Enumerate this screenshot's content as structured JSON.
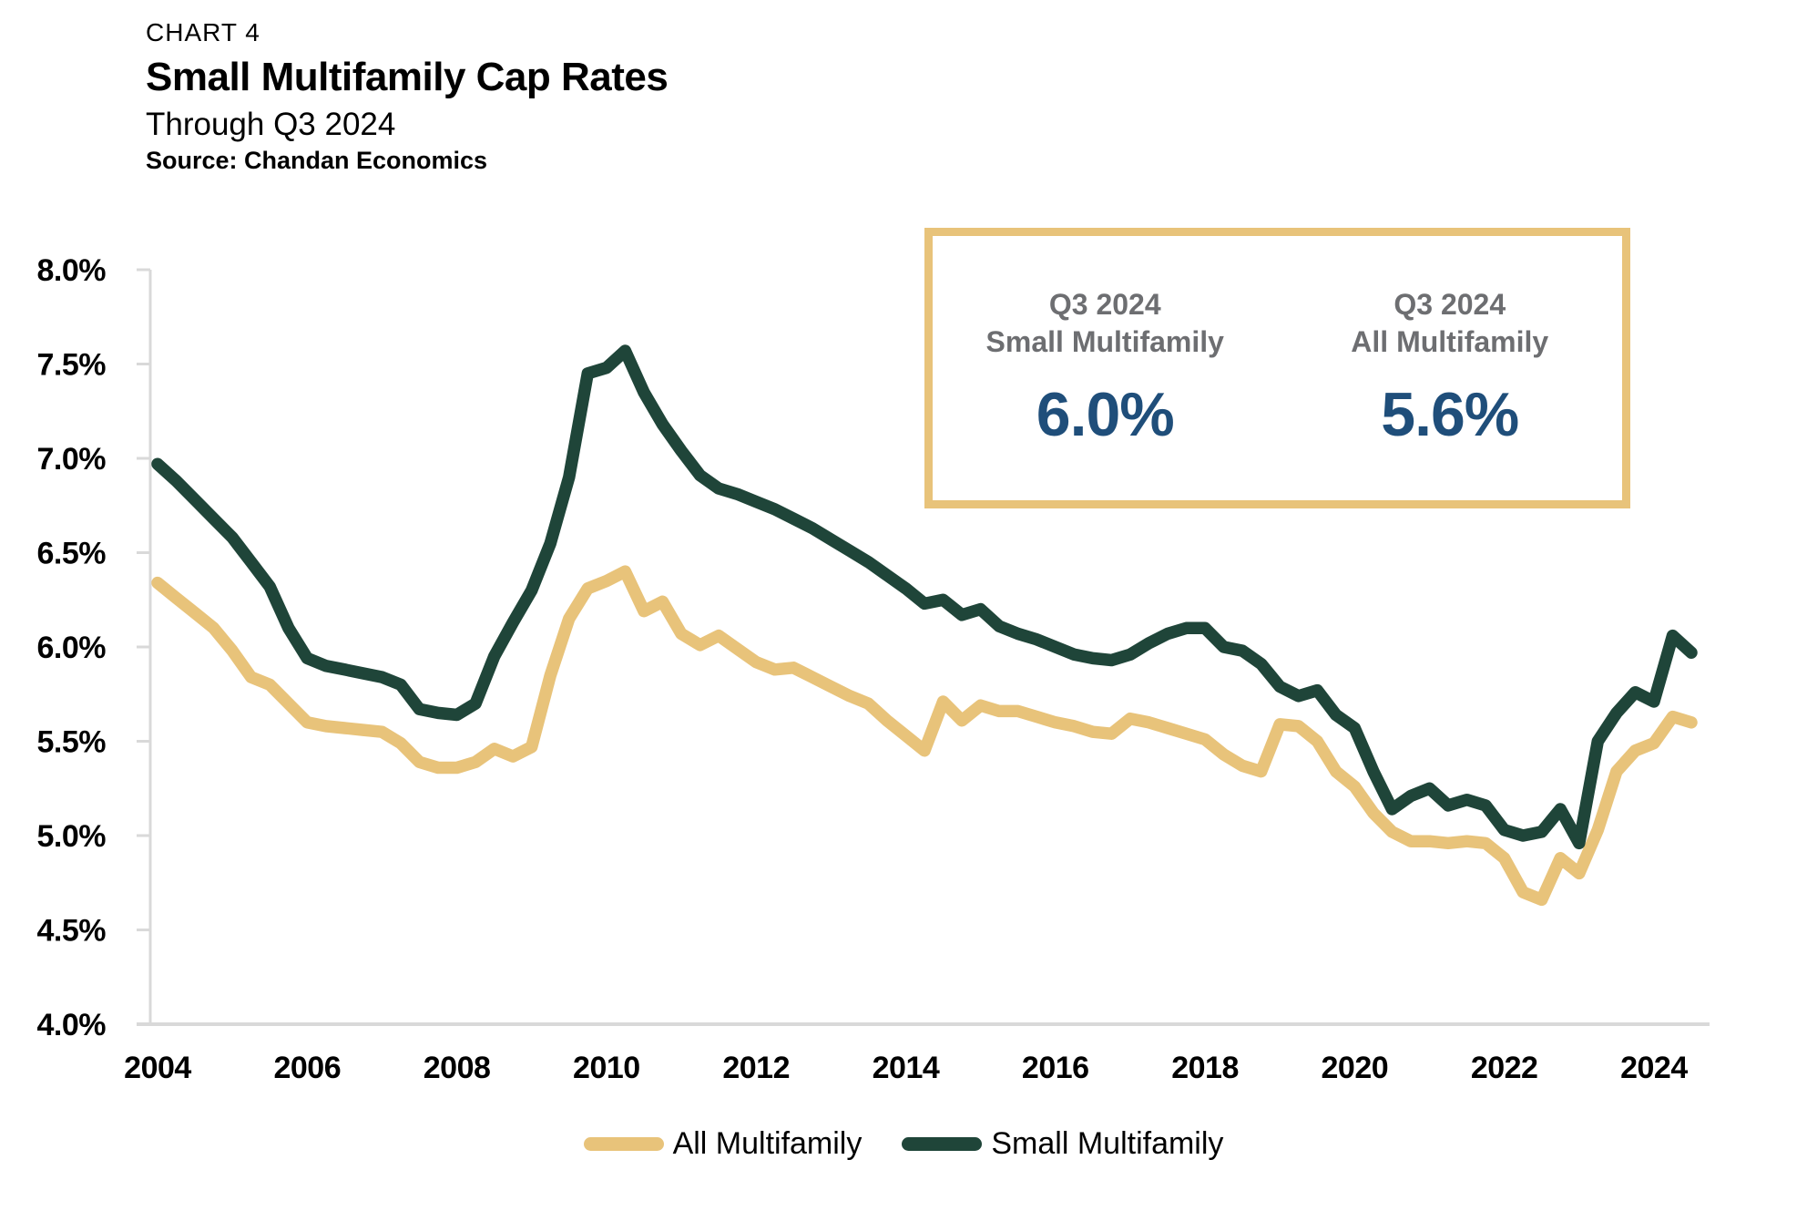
{
  "header": {
    "chart_label": "CHART 4",
    "title": "Small Multifamily Cap Rates",
    "subtitle": "Through Q3 2024",
    "source": "Source: Chandan Economics"
  },
  "callout": {
    "border_color": "#E8C37A",
    "label_color": "#6D6E71",
    "value_color": "#1F4E7A",
    "items": [
      {
        "period": "Q3 2024",
        "label": "Small Multifamily",
        "value": "6.0%"
      },
      {
        "period": "Q3 2024",
        "label": "All Multifamily",
        "value": "5.6%"
      }
    ]
  },
  "chart_data": {
    "type": "line",
    "title": "Small Multifamily Cap Rates",
    "subtitle": "Through Q3 2024",
    "source": "Chandan Economics",
    "frequency": "quarterly",
    "x_start": "2004 Q1",
    "x_end": "2024 Q3",
    "x_tick_years": [
      2004,
      2006,
      2008,
      2010,
      2012,
      2014,
      2016,
      2018,
      2020,
      2022,
      2024
    ],
    "ylim": [
      4.0,
      8.0
    ],
    "y_tick_step": 0.5,
    "y_tick_suffix": "%",
    "grid": false,
    "legend_position": "bottom-center",
    "axis_color": "#D9D9D9",
    "series": [
      {
        "name": "All Multifamily",
        "color": "#E8C37A",
        "values": [
          6.34,
          6.26,
          6.18,
          6.1,
          5.98,
          5.84,
          5.8,
          5.7,
          5.6,
          5.58,
          5.57,
          5.56,
          5.55,
          5.49,
          5.39,
          5.36,
          5.36,
          5.39,
          5.46,
          5.42,
          5.47,
          5.85,
          6.15,
          6.31,
          6.35,
          6.4,
          6.19,
          6.24,
          6.07,
          6.01,
          6.06,
          5.99,
          5.92,
          5.88,
          5.89,
          5.84,
          5.79,
          5.74,
          5.7,
          5.61,
          5.53,
          5.45,
          5.71,
          5.61,
          5.69,
          5.66,
          5.66,
          5.63,
          5.6,
          5.58,
          5.55,
          5.54,
          5.62,
          5.6,
          5.57,
          5.54,
          5.51,
          5.43,
          5.37,
          5.34,
          5.59,
          5.58,
          5.5,
          5.34,
          5.26,
          5.12,
          5.02,
          4.97,
          4.97,
          4.96,
          4.97,
          4.96,
          4.88,
          4.7,
          4.66,
          4.88,
          4.8,
          5.03,
          5.34,
          5.45,
          5.49,
          5.63,
          5.6
        ]
      },
      {
        "name": "Small Multifamily",
        "color": "#1F4539",
        "values": [
          6.97,
          6.88,
          6.78,
          6.68,
          6.58,
          6.45,
          6.32,
          6.1,
          5.94,
          5.9,
          5.88,
          5.86,
          5.84,
          5.8,
          5.67,
          5.65,
          5.64,
          5.7,
          5.95,
          6.13,
          6.3,
          6.55,
          6.9,
          7.45,
          7.48,
          7.57,
          7.35,
          7.18,
          7.04,
          6.91,
          6.84,
          6.81,
          6.77,
          6.73,
          6.68,
          6.63,
          6.57,
          6.51,
          6.45,
          6.38,
          6.31,
          6.23,
          6.25,
          6.17,
          6.2,
          6.11,
          6.07,
          6.04,
          6.0,
          5.96,
          5.94,
          5.93,
          5.96,
          6.02,
          6.07,
          6.1,
          6.1,
          6.0,
          5.98,
          5.91,
          5.79,
          5.74,
          5.77,
          5.64,
          5.57,
          5.34,
          5.14,
          5.21,
          5.25,
          5.16,
          5.19,
          5.16,
          5.03,
          5.0,
          5.02,
          5.14,
          4.96,
          5.5,
          5.65,
          5.76,
          5.71,
          6.06,
          5.97
        ]
      }
    ]
  }
}
